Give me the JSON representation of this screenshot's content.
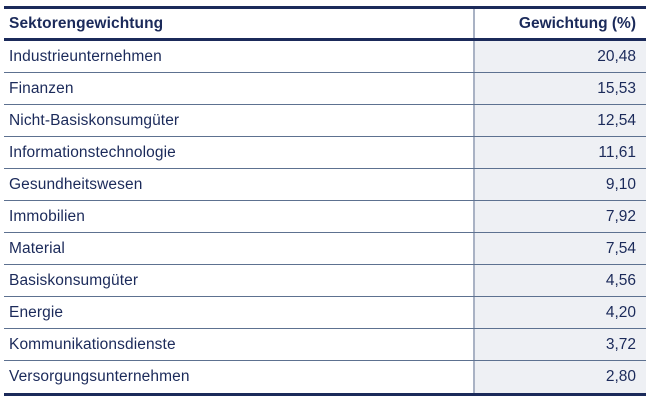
{
  "table": {
    "header": {
      "sector": "Sektorengewichtung",
      "weight": "Gewichtung (%)"
    },
    "rows": [
      {
        "sector": "Industrieunternehmen",
        "weight": "20,48"
      },
      {
        "sector": "Finanzen",
        "weight": "15,53"
      },
      {
        "sector": "Nicht-Basiskonsumgüter",
        "weight": "12,54"
      },
      {
        "sector": "Informationstechnologie",
        "weight": "11,61"
      },
      {
        "sector": "Gesundheitswesen",
        "weight": "9,10"
      },
      {
        "sector": "Immobilien",
        "weight": "7,92"
      },
      {
        "sector": "Material",
        "weight": "7,54"
      },
      {
        "sector": "Basiskonsumgüter",
        "weight": "4,56"
      },
      {
        "sector": "Energie",
        "weight": "4,20"
      },
      {
        "sector": "Kommunikationsdienste",
        "weight": "3,72"
      },
      {
        "sector": "Versorgungsunternehmen",
        "weight": "2,80"
      }
    ]
  },
  "chart_data": {
    "type": "table",
    "title": "Sektorengewichtung",
    "columns": [
      "Sektorengewichtung",
      "Gewichtung (%)"
    ],
    "categories": [
      "Industrieunternehmen",
      "Finanzen",
      "Nicht-Basiskonsumgüter",
      "Informationstechnologie",
      "Gesundheitswesen",
      "Immobilien",
      "Material",
      "Basiskonsumgüter",
      "Energie",
      "Kommunikationsdienste",
      "Versorgungsunternehmen"
    ],
    "values": [
      20.48,
      15.53,
      12.54,
      11.61,
      9.1,
      7.92,
      7.54,
      4.56,
      4.2,
      3.72,
      2.8
    ],
    "value_format": "decimal comma (de-DE), two decimals"
  },
  "colors": {
    "text_navy": "#1b2a5a",
    "thick_rule": "#1b2a5a",
    "row_separator": "#5d7190",
    "column_divider": "#a9b2c4",
    "value_column_bg": "#eef0f4",
    "background": "#ffffff"
  }
}
